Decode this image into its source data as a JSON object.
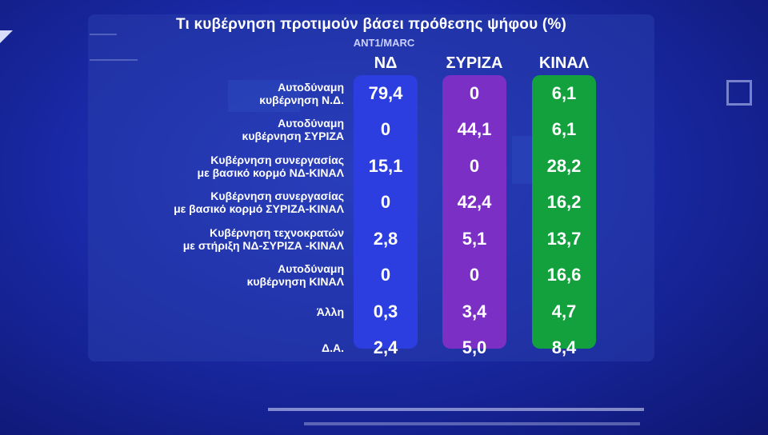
{
  "title": "Τι κυβέρνηση προτιμούν βάσει πρόθεσης ψήφου (%)",
  "source": "ANT1/MARC",
  "colors": {
    "nd": "#2d3ee0",
    "syriza": "#7b2fc4",
    "kinal": "#12a13d",
    "background": "#1a2aa8"
  },
  "chart_data": {
    "type": "table",
    "title": "Τι κυβέρνηση προτιμούν βάσει πρόθεσης ψήφου (%)",
    "columns": [
      "ΝΔ",
      "ΣΥΡΙΖΑ",
      "ΚΙΝΑΛ"
    ],
    "rows": [
      {
        "label": [
          "Αυτοδύναμη",
          "κυβέρνηση Ν.Δ."
        ],
        "values": [
          "79,4",
          "0",
          "6,1"
        ]
      },
      {
        "label": [
          "Αυτοδύναμη",
          "κυβέρνηση ΣΥΡΙΖΑ"
        ],
        "values": [
          "0",
          "44,1",
          "6,1"
        ]
      },
      {
        "label": [
          "Κυβέρνηση συνεργασίας",
          "με βασικό κορμό ΝΔ-ΚΙΝΑΛ"
        ],
        "values": [
          "15,1",
          "0",
          "28,2"
        ]
      },
      {
        "label": [
          "Κυβέρνηση συνεργασίας",
          "με βασικό κορμό ΣΥΡΙΖΑ-ΚΙΝΑΛ"
        ],
        "values": [
          "0",
          "42,4",
          "16,2"
        ]
      },
      {
        "label": [
          "Κυβέρνηση τεχνοκρατών",
          "με στήριξη ΝΔ-ΣΥΡΙΖΑ -ΚΙΝΑΛ"
        ],
        "values": [
          "2,8",
          "5,1",
          "13,7"
        ]
      },
      {
        "label": [
          "Αυτοδύναμη",
          "κυβέρνηση ΚΙΝΑΛ"
        ],
        "values": [
          "0",
          "0",
          "16,6"
        ]
      },
      {
        "label": [
          "Άλλη"
        ],
        "values": [
          "0,3",
          "3,4",
          "4,7"
        ]
      },
      {
        "label": [
          "Δ.Α."
        ],
        "values": [
          "2,4",
          "5,0",
          "8,4"
        ]
      }
    ]
  }
}
